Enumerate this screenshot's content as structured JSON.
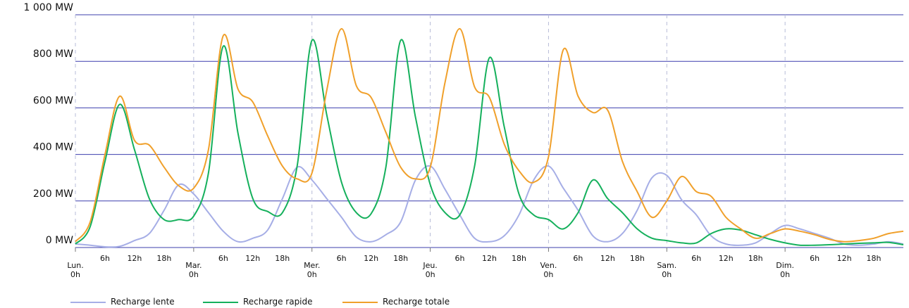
{
  "chart_data": {
    "type": "line",
    "y_unit": "MW",
    "ylim": [
      0,
      1000
    ],
    "y_ticks": [
      {
        "value": 0,
        "label": "0 MW"
      },
      {
        "value": 200,
        "label": "200 MW"
      },
      {
        "value": 400,
        "label": "400 MW"
      },
      {
        "value": 600,
        "label": "600 MW"
      },
      {
        "value": 800,
        "label": "800 MW"
      },
      {
        "value": 1000,
        "label": "1 000 MW"
      }
    ],
    "x_unit": "hours",
    "xlim": [
      0,
      168
    ],
    "x_ticks": [
      {
        "value": 0,
        "label": [
          "Lun.",
          "0h"
        ]
      },
      {
        "value": 6,
        "label": [
          "6h"
        ]
      },
      {
        "value": 12,
        "label": [
          "12h"
        ]
      },
      {
        "value": 18,
        "label": [
          "18h"
        ]
      },
      {
        "value": 24,
        "label": [
          "Mar.",
          "0h"
        ]
      },
      {
        "value": 30,
        "label": [
          "6h"
        ]
      },
      {
        "value": 36,
        "label": [
          "12h"
        ]
      },
      {
        "value": 42,
        "label": [
          "18h"
        ]
      },
      {
        "value": 48,
        "label": [
          "Mer.",
          "0h"
        ]
      },
      {
        "value": 54,
        "label": [
          "6h"
        ]
      },
      {
        "value": 60,
        "label": [
          "12h"
        ]
      },
      {
        "value": 66,
        "label": [
          "18h"
        ]
      },
      {
        "value": 72,
        "label": [
          "Jeu.",
          "0h"
        ]
      },
      {
        "value": 78,
        "label": [
          "6h"
        ]
      },
      {
        "value": 84,
        "label": [
          "12h"
        ]
      },
      {
        "value": 90,
        "label": [
          "18h"
        ]
      },
      {
        "value": 96,
        "label": [
          "Ven.",
          "0h"
        ]
      },
      {
        "value": 102,
        "label": [
          "6h"
        ]
      },
      {
        "value": 108,
        "label": [
          "12h"
        ]
      },
      {
        "value": 114,
        "label": [
          "18h"
        ]
      },
      {
        "value": 120,
        "label": [
          "Sam.",
          "0h"
        ]
      },
      {
        "value": 126,
        "label": [
          "6h"
        ]
      },
      {
        "value": 132,
        "label": [
          "12h"
        ]
      },
      {
        "value": 138,
        "label": [
          "18h"
        ]
      },
      {
        "value": 144,
        "label": [
          "Dim.",
          "0h"
        ]
      },
      {
        "value": 150,
        "label": [
          "6h"
        ]
      },
      {
        "value": 156,
        "label": [
          "12h"
        ]
      },
      {
        "value": 162,
        "label": [
          "18h"
        ]
      }
    ],
    "day_separators": [
      0,
      24,
      48,
      72,
      96,
      120,
      144
    ],
    "horizontal_grid": true,
    "legend_position": "bottom-left",
    "series": [
      {
        "name": "Recharge lente",
        "color": "#a6aee6",
        "x": [
          0,
          3,
          6,
          9,
          12,
          15,
          18,
          21,
          24,
          27,
          30,
          33,
          36,
          39,
          42,
          45,
          48,
          51,
          54,
          57,
          60,
          63,
          66,
          69,
          72,
          75,
          78,
          81,
          84,
          87,
          90,
          93,
          96,
          99,
          102,
          105,
          108,
          111,
          114,
          117,
          120,
          123,
          126,
          129,
          132,
          135,
          138,
          141,
          144,
          147,
          150,
          153,
          156,
          159,
          162,
          165,
          168
        ],
        "values": [
          15,
          10,
          3,
          5,
          30,
          60,
          160,
          270,
          230,
          150,
          70,
          25,
          40,
          75,
          210,
          345,
          290,
          210,
          130,
          45,
          25,
          55,
          110,
          290,
          350,
          250,
          140,
          40,
          25,
          50,
          140,
          290,
          350,
          255,
          160,
          50,
          25,
          60,
          160,
          300,
          310,
          205,
          140,
          50,
          15,
          10,
          20,
          60,
          95,
          80,
          60,
          40,
          15,
          10,
          15,
          25,
          15
        ]
      },
      {
        "name": "Recharge rapide",
        "color": "#15b05c",
        "x": [
          0,
          3,
          6,
          9,
          12,
          15,
          18,
          21,
          24,
          27,
          30,
          33,
          36,
          39,
          42,
          45,
          48,
          51,
          54,
          57,
          60,
          63,
          66,
          69,
          72,
          75,
          78,
          81,
          84,
          87,
          90,
          93,
          96,
          99,
          102,
          105,
          108,
          111,
          114,
          117,
          120,
          123,
          126,
          129,
          132,
          135,
          138,
          141,
          144,
          147,
          150,
          153,
          156,
          159,
          162,
          165,
          168
        ],
        "values": [
          15,
          90,
          370,
          615,
          420,
          210,
          120,
          120,
          135,
          320,
          865,
          490,
          210,
          155,
          150,
          350,
          890,
          570,
          280,
          150,
          145,
          345,
          890,
          560,
          270,
          150,
          140,
          350,
          815,
          520,
          230,
          140,
          120,
          80,
          150,
          290,
          210,
          150,
          80,
          40,
          30,
          20,
          20,
          60,
          80,
          75,
          55,
          35,
          20,
          10,
          10,
          12,
          15,
          18,
          20,
          22,
          12
        ]
      },
      {
        "name": "Recharge totale",
        "color": "#f0a02b",
        "x": [
          0,
          3,
          6,
          9,
          12,
          15,
          18,
          21,
          24,
          27,
          30,
          33,
          36,
          39,
          42,
          45,
          48,
          51,
          54,
          57,
          60,
          63,
          66,
          69,
          72,
          75,
          78,
          81,
          84,
          87,
          90,
          93,
          96,
          99,
          102,
          105,
          108,
          111,
          114,
          117,
          120,
          123,
          126,
          129,
          132,
          135,
          138,
          141,
          144,
          147,
          150,
          153,
          156,
          159,
          162,
          165,
          168
        ],
        "values": [
          25,
          110,
          400,
          650,
          460,
          440,
          345,
          265,
          255,
          420,
          910,
          680,
          625,
          480,
          350,
          295,
          320,
          675,
          940,
          695,
          645,
          495,
          345,
          295,
          345,
          710,
          940,
          690,
          645,
          445,
          330,
          280,
          390,
          850,
          650,
          580,
          590,
          370,
          240,
          130,
          200,
          305,
          240,
          220,
          130,
          80,
          40,
          60,
          80,
          70,
          55,
          35,
          25,
          30,
          40,
          60,
          70
        ]
      }
    ]
  }
}
